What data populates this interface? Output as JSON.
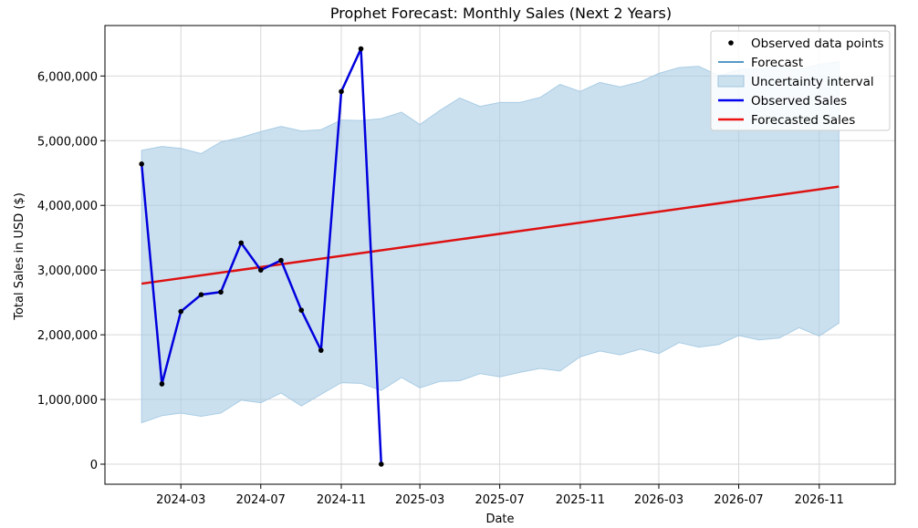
{
  "chart_data": {
    "type": "line",
    "title": "Prophet Forecast: Monthly Sales (Next 2 Years)",
    "xlabel": "Date",
    "ylabel": "Total Sales in USD ($)",
    "xlim": [
      "2023-11-06",
      "2027-02-25"
    ],
    "ylim": [
      -310000,
      6780000
    ],
    "grid": true,
    "legend_position": "top-right",
    "x_ticks": [
      "2024-03",
      "2024-07",
      "2024-11",
      "2025-03",
      "2025-07",
      "2025-11",
      "2026-03",
      "2026-07",
      "2026-11"
    ],
    "y_ticks": [
      0,
      1000000,
      2000000,
      3000000,
      4000000,
      5000000,
      6000000
    ],
    "y_tick_labels": [
      "0",
      "1,000,000",
      "2,000,000",
      "3,000,000",
      "4,000,000",
      "5,000,000",
      "6,000,000"
    ],
    "legend": [
      {
        "label": "Observed data points",
        "kind": "marker",
        "color": "#000000"
      },
      {
        "label": "Forecast",
        "kind": "line",
        "color": "#1f77b4"
      },
      {
        "label": "Uncertainty interval",
        "kind": "patch",
        "color": "#cce1ee"
      },
      {
        "label": "Observed Sales",
        "kind": "line",
        "color": "#0000ee"
      },
      {
        "label": "Forecasted Sales",
        "kind": "line",
        "color": "#ee1111"
      }
    ],
    "observed": {
      "name": "Observed Sales",
      "color": "#0000dd",
      "x": [
        "2024-01-01",
        "2024-02-01",
        "2024-03-01",
        "2024-04-01",
        "2024-05-01",
        "2024-06-01",
        "2024-07-01",
        "2024-08-01",
        "2024-09-01",
        "2024-10-01",
        "2024-11-01",
        "2024-12-01",
        "2025-01-01"
      ],
      "y": [
        4640000,
        1240000,
        2360000,
        2620000,
        2660000,
        3420000,
        3000000,
        3150000,
        2380000,
        1760000,
        5760000,
        6420000,
        0
      ]
    },
    "forecast": {
      "name": "Forecasted Sales",
      "color": "#dd1111",
      "x": [
        "2024-01-01",
        "2026-12-01"
      ],
      "y": [
        2790000,
        4290000
      ]
    },
    "uncertainty": {
      "name": "Uncertainty interval",
      "color": "#a8cce4",
      "x": [
        "2024-01-01",
        "2024-02-01",
        "2024-03-01",
        "2024-04-01",
        "2024-05-01",
        "2024-06-01",
        "2024-07-01",
        "2024-08-01",
        "2024-09-01",
        "2024-10-01",
        "2024-11-01",
        "2024-12-01",
        "2025-01-01",
        "2025-02-01",
        "2025-03-01",
        "2025-04-01",
        "2025-05-01",
        "2025-06-01",
        "2025-07-01",
        "2025-08-01",
        "2025-09-01",
        "2025-10-01",
        "2025-11-01",
        "2025-12-01",
        "2026-01-01",
        "2026-02-01",
        "2026-03-01",
        "2026-04-01",
        "2026-05-01",
        "2026-06-01",
        "2026-07-01",
        "2026-08-01",
        "2026-09-01",
        "2026-10-01",
        "2026-11-01",
        "2026-12-01"
      ],
      "upper": [
        4850000,
        4910000,
        4880000,
        4800000,
        4980000,
        5050000,
        5140000,
        5220000,
        5150000,
        5170000,
        5320000,
        5310000,
        5340000,
        5440000,
        5250000,
        5470000,
        5660000,
        5530000,
        5590000,
        5590000,
        5670000,
        5870000,
        5760000,
        5900000,
        5830000,
        5910000,
        6040000,
        6130000,
        6150000,
        6000000,
        6100000,
        6110000,
        6150000,
        6100000,
        6180000,
        6220000
      ],
      "lower": [
        640000,
        750000,
        790000,
        740000,
        790000,
        990000,
        950000,
        1100000,
        900000,
        1080000,
        1260000,
        1250000,
        1140000,
        1340000,
        1180000,
        1280000,
        1290000,
        1400000,
        1350000,
        1420000,
        1480000,
        1440000,
        1660000,
        1750000,
        1690000,
        1780000,
        1710000,
        1880000,
        1810000,
        1850000,
        1990000,
        1920000,
        1950000,
        2110000,
        1980000,
        2180000
      ]
    }
  }
}
